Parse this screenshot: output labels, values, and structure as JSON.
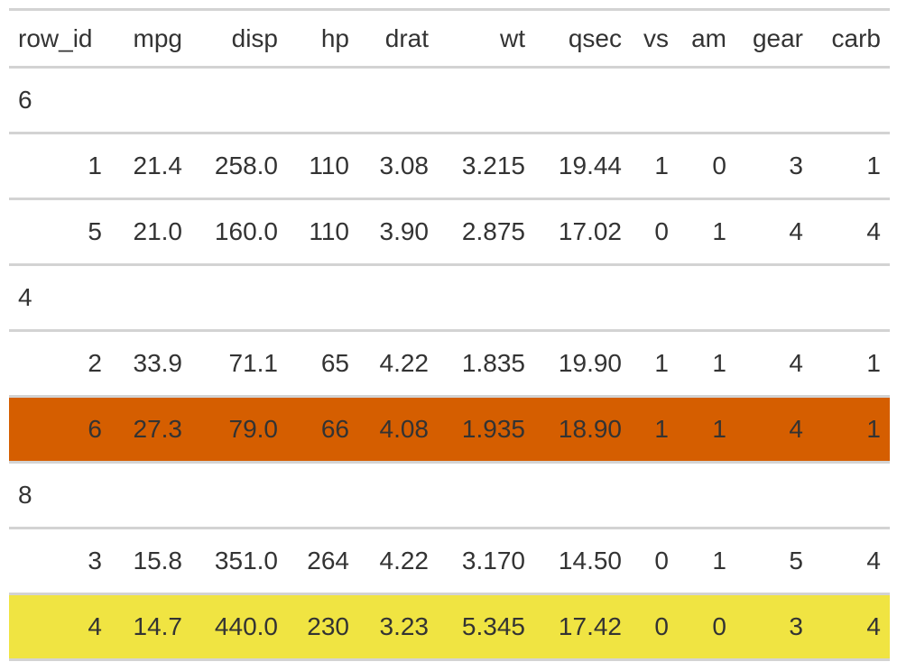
{
  "columns": [
    "row_id",
    "mpg",
    "disp",
    "hp",
    "drat",
    "wt",
    "qsec",
    "vs",
    "am",
    "gear",
    "carb"
  ],
  "highlight_colors": {
    "orange": "#D55E00",
    "yellow": "#F0E442"
  },
  "groups": [
    {
      "label": "6",
      "rows": [
        {
          "cells": [
            "1",
            "21.4",
            "258.0",
            "110",
            "3.08",
            "3.215",
            "19.44",
            "1",
            "0",
            "3",
            "1"
          ]
        },
        {
          "cells": [
            "5",
            "21.0",
            "160.0",
            "110",
            "3.90",
            "2.875",
            "17.02",
            "0",
            "1",
            "4",
            "4"
          ]
        }
      ]
    },
    {
      "label": "4",
      "rows": [
        {
          "cells": [
            "2",
            "33.9",
            "71.1",
            "65",
            "4.22",
            "1.835",
            "19.90",
            "1",
            "1",
            "4",
            "1"
          ]
        },
        {
          "cells": [
            "6",
            "27.3",
            "79.0",
            "66",
            "4.08",
            "1.935",
            "18.90",
            "1",
            "1",
            "4",
            "1"
          ],
          "highlight": "#D55E00"
        }
      ]
    },
    {
      "label": "8",
      "rows": [
        {
          "cells": [
            "3",
            "15.8",
            "351.0",
            "264",
            "4.22",
            "3.170",
            "14.50",
            "0",
            "1",
            "5",
            "4"
          ]
        },
        {
          "cells": [
            "4",
            "14.7",
            "440.0",
            "230",
            "3.23",
            "5.345",
            "17.42",
            "0",
            "0",
            "3",
            "4"
          ],
          "highlight": "#F0E442"
        }
      ]
    }
  ]
}
